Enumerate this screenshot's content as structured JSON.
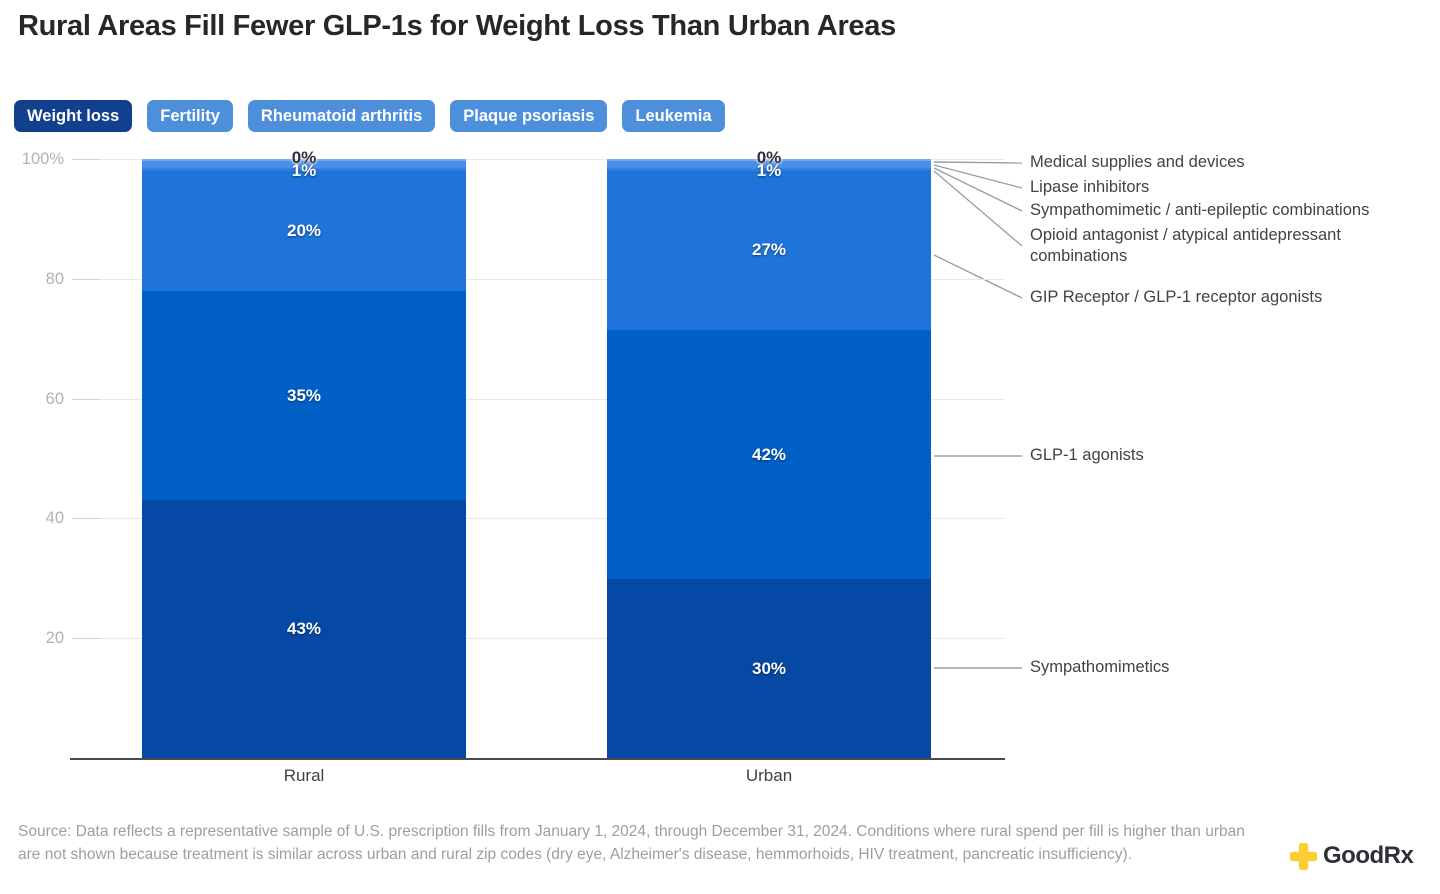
{
  "title": "Rural Areas Fill Fewer GLP-1s for Weight Loss Than Urban Areas",
  "tabs": [
    {
      "label": "Weight loss",
      "active": true
    },
    {
      "label": "Fertility",
      "active": false
    },
    {
      "label": "Rheumatoid arthritis",
      "active": false
    },
    {
      "label": "Plaque psoriasis",
      "active": false
    },
    {
      "label": "Leukemia",
      "active": false
    }
  ],
  "chart_data": {
    "type": "bar",
    "stacked": true,
    "title": "Rural Areas Fill Fewer GLP-1s for Weight Loss Than Urban Areas",
    "categories": [
      "Rural",
      "Urban"
    ],
    "xlabel": "",
    "ylabel": "",
    "ylim": [
      0,
      100
    ],
    "ytick_labels": [
      "100%",
      "80",
      "60",
      "40",
      "20"
    ],
    "grid": "horizontal",
    "legend_position": "right-annotations",
    "series": [
      {
        "name": "Sympathomimetics",
        "color": "#0549a5",
        "values": [
          43,
          30
        ],
        "display": [
          "43%",
          "30%"
        ],
        "h": [
          43,
          29.8
        ]
      },
      {
        "name": "GLP-1 agonists",
        "color": "#0160c6",
        "values": [
          35,
          42
        ],
        "display": [
          "35%",
          "42%"
        ],
        "h": [
          35,
          41.7
        ]
      },
      {
        "name": "GIP Receptor / GLP-1 receptor agonists",
        "color": "#1e74da",
        "values": [
          20,
          27
        ],
        "display": [
          "20%",
          "27%"
        ],
        "h": [
          20,
          26.5
        ]
      },
      {
        "name": "Opioid antagonist / atypical antidepressant combinations",
        "color": "#2e7cdd",
        "values": [
          0,
          0
        ],
        "display": [
          "",
          ""
        ],
        "h": [
          0.3,
          0.3
        ]
      },
      {
        "name": "Sympathomimetic / anti-epileptic combinations",
        "color": "#3b84e0",
        "values": [
          0,
          0
        ],
        "display": [
          "",
          ""
        ],
        "h": [
          0.25,
          0.25
        ]
      },
      {
        "name": "Lipase inhibitors",
        "color": "#4a8ee6",
        "values": [
          1,
          1
        ],
        "display": [
          "1%",
          "1%"
        ],
        "h": [
          1.05,
          1.05
        ]
      },
      {
        "name": "Medical supplies and devices",
        "color": "#79a8ee",
        "values": [
          0,
          0
        ],
        "display": [
          "0%",
          "0%"
        ],
        "h": [
          0.4,
          0.4
        ]
      }
    ]
  },
  "annotations": [
    {
      "label": "Medical supplies and devices"
    },
    {
      "label": "Lipase inhibitors"
    },
    {
      "label": "Sympathomimetic / anti-epileptic combinations"
    },
    {
      "label": "Opioid antagonist / atypical antidepressant combinations"
    },
    {
      "label": "GIP Receptor / GLP-1 receptor agonists"
    },
    {
      "label": "GLP-1 agonists"
    },
    {
      "label": "Sympathomimetics"
    }
  ],
  "source": "Source: Data reflects a representative sample of U.S. prescription fills from January 1, 2024, through December 31, 2024. Conditions where rural spend per fill is higher than urban are not shown because treatment is similar across urban and rural zip codes (dry eye, Alzheimer's disease, hemmorhoids, HIV treatment, pancreatic insufficiency).",
  "logo": {
    "text": "GoodRx"
  },
  "colors": {
    "tab_active": "#12408f",
    "tab_inactive": "#4e8fdc",
    "accent_yellow": "#fbcf33",
    "baseline": "#4a4a4a",
    "connector": "#9aa0a4"
  }
}
